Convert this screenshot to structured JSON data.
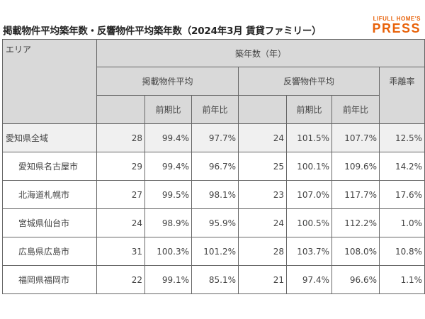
{
  "title": "掲載物件平均築年数・反響物件平均築年数（2024年3月 賃貸ファミリー）",
  "logo": {
    "top": "LIFULL HOME'S",
    "main": "PRESS"
  },
  "colors": {
    "brand": "#e8620a",
    "header_bg": "#d9d9d9",
    "row_highlight": "#f0f0f0"
  },
  "table": {
    "headers": {
      "area": "エリア",
      "age": "築年数（年）",
      "listing_avg": "掲載物件平均",
      "response_avg": "反響物件平均",
      "divergence": "乖離率",
      "prev_period": "前期比",
      "prev_year": "前年比"
    },
    "rows": [
      {
        "area": "愛知県全域",
        "l_avg": "28",
        "l_prev": "99.4%",
        "l_yoy": "97.7%",
        "r_avg": "24",
        "r_prev": "101.5%",
        "r_yoy": "107.7%",
        "div": "12.5%"
      },
      {
        "area": "愛知県名古屋市",
        "l_avg": "29",
        "l_prev": "99.4%",
        "l_yoy": "96.7%",
        "r_avg": "25",
        "r_prev": "100.1%",
        "r_yoy": "109.6%",
        "div": "14.2%"
      },
      {
        "area": "北海道札幌市",
        "l_avg": "27",
        "l_prev": "99.5%",
        "l_yoy": "98.1%",
        "r_avg": "23",
        "r_prev": "107.0%",
        "r_yoy": "117.7%",
        "div": "17.6%"
      },
      {
        "area": "宮城県仙台市",
        "l_avg": "24",
        "l_prev": "98.9%",
        "l_yoy": "95.9%",
        "r_avg": "24",
        "r_prev": "100.5%",
        "r_yoy": "112.2%",
        "div": "1.0%"
      },
      {
        "area": "広島県広島市",
        "l_avg": "31",
        "l_prev": "100.3%",
        "l_yoy": "101.2%",
        "r_avg": "28",
        "r_prev": "103.7%",
        "r_yoy": "108.0%",
        "div": "10.8%"
      },
      {
        "area": "福岡県福岡市",
        "l_avg": "22",
        "l_prev": "99.1%",
        "l_yoy": "85.1%",
        "r_avg": "21",
        "r_prev": "97.4%",
        "r_yoy": "96.6%",
        "div": "1.1%"
      }
    ]
  }
}
